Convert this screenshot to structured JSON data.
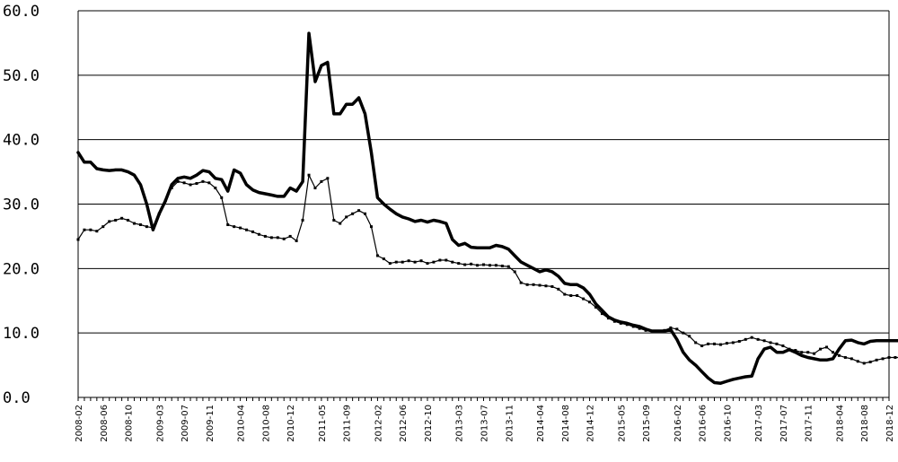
{
  "chart_data": {
    "type": "line",
    "title": "",
    "xlabel": "",
    "ylabel": "",
    "ylim": [
      0,
      60
    ],
    "y_ticks": [
      "0.0",
      "10.0",
      "20.0",
      "30.0",
      "40.0",
      "50.0",
      "60.0"
    ],
    "x_range": [
      "2008-02",
      "2018-12"
    ],
    "x_tick_labels": [
      "2008-02",
      "2008-06",
      "2008-10",
      "2009-03",
      "2009-07",
      "2009-11",
      "2010-04",
      "2010-08",
      "2010-12",
      "2011-05",
      "2011-09",
      "2012-02",
      "2012-06",
      "2012-10",
      "2013-03",
      "2013-07",
      "2013-11",
      "2014-04",
      "2014-08",
      "2014-12",
      "2015-05",
      "2015-09",
      "2016-02",
      "2016-06",
      "2016-10",
      "2017-03",
      "2017-07",
      "2017-11",
      "2018-04",
      "2018-08",
      "2018-12"
    ],
    "grid": "horizontal",
    "colors": {
      "line": "#000000",
      "grid": "#000000"
    },
    "series": [
      {
        "style": "thick",
        "points": [
          [
            "2008-02",
            38.0
          ],
          [
            "2008-03",
            36.5
          ],
          [
            "2008-04",
            36.5
          ],
          [
            "2008-05",
            35.5
          ],
          [
            "2008-06",
            35.3
          ],
          [
            "2008-07",
            35.2
          ],
          [
            "2008-08",
            35.3
          ],
          [
            "2008-09",
            35.3
          ],
          [
            "2008-10",
            35.0
          ],
          [
            "2008-11",
            34.5
          ],
          [
            "2008-12",
            33.0
          ],
          [
            "2009-01",
            30.0
          ],
          [
            "2009-02",
            26.0
          ],
          [
            "2009-03",
            28.5
          ],
          [
            "2009-04",
            30.5
          ],
          [
            "2009-05",
            33.0
          ],
          [
            "2009-06",
            34.0
          ],
          [
            "2009-07",
            34.2
          ],
          [
            "2009-08",
            34.0
          ],
          [
            "2009-09",
            34.5
          ],
          [
            "2009-10",
            35.2
          ],
          [
            "2009-11",
            35.0
          ],
          [
            "2009-12",
            34.0
          ],
          [
            "2010-01",
            33.8
          ],
          [
            "2010-02",
            32.0
          ],
          [
            "2010-03",
            35.3
          ],
          [
            "2010-04",
            34.8
          ],
          [
            "2010-05",
            33.0
          ],
          [
            "2010-06",
            32.2
          ],
          [
            "2010-07",
            31.8
          ],
          [
            "2010-08",
            31.6
          ],
          [
            "2010-09",
            31.4
          ],
          [
            "2010-10",
            31.2
          ],
          [
            "2010-11",
            31.2
          ],
          [
            "2010-12",
            32.5
          ],
          [
            "2011-01",
            32.0
          ],
          [
            "2011-02",
            33.5
          ],
          [
            "2011-03",
            56.5
          ],
          [
            "2011-04",
            49.0
          ],
          [
            "2011-05",
            51.5
          ],
          [
            "2011-06",
            52.0
          ],
          [
            "2011-07",
            44.0
          ],
          [
            "2011-08",
            44.0
          ],
          [
            "2011-09",
            45.5
          ],
          [
            "2011-10",
            45.5
          ],
          [
            "2011-11",
            46.5
          ],
          [
            "2011-12",
            44.0
          ],
          [
            "2012-01",
            38.0
          ],
          [
            "2012-02",
            31.0
          ],
          [
            "2012-03",
            30.0
          ],
          [
            "2012-04",
            29.2
          ],
          [
            "2012-05",
            28.5
          ],
          [
            "2012-06",
            28.0
          ],
          [
            "2012-07",
            27.7
          ],
          [
            "2012-08",
            27.3
          ],
          [
            "2012-09",
            27.5
          ],
          [
            "2012-10",
            27.2
          ],
          [
            "2012-11",
            27.5
          ],
          [
            "2012-12",
            27.3
          ],
          [
            "2013-01",
            27.0
          ],
          [
            "2013-02",
            24.5
          ],
          [
            "2013-03",
            23.6
          ],
          [
            "2013-04",
            23.9
          ],
          [
            "2013-05",
            23.3
          ],
          [
            "2013-06",
            23.2
          ],
          [
            "2013-07",
            23.2
          ],
          [
            "2013-08",
            23.2
          ],
          [
            "2013-09",
            23.6
          ],
          [
            "2013-10",
            23.4
          ],
          [
            "2013-11",
            23.0
          ],
          [
            "2013-12",
            22.0
          ],
          [
            "2014-01",
            21.0
          ],
          [
            "2014-02",
            20.5
          ],
          [
            "2014-03",
            20.0
          ],
          [
            "2014-04",
            19.5
          ],
          [
            "2014-05",
            19.8
          ],
          [
            "2014-06",
            19.5
          ],
          [
            "2014-07",
            18.8
          ],
          [
            "2014-08",
            17.7
          ],
          [
            "2014-09",
            17.5
          ],
          [
            "2014-10",
            17.5
          ],
          [
            "2014-11",
            17.0
          ],
          [
            "2014-12",
            16.0
          ],
          [
            "2015-01",
            14.5
          ],
          [
            "2015-02",
            13.5
          ],
          [
            "2015-03",
            12.5
          ],
          [
            "2015-04",
            12.0
          ],
          [
            "2015-05",
            11.7
          ],
          [
            "2015-06",
            11.5
          ],
          [
            "2015-07",
            11.2
          ],
          [
            "2015-08",
            11.0
          ],
          [
            "2015-09",
            10.6
          ],
          [
            "2015-10",
            10.3
          ],
          [
            "2015-11",
            10.3
          ],
          [
            "2015-12",
            10.3
          ],
          [
            "2016-01",
            10.5
          ],
          [
            "2016-02",
            9.0
          ],
          [
            "2016-03",
            7.0
          ],
          [
            "2016-04",
            5.8
          ],
          [
            "2016-05",
            5.0
          ],
          [
            "2016-06",
            4.0
          ],
          [
            "2016-07",
            3.0
          ],
          [
            "2016-08",
            2.3
          ],
          [
            "2016-09",
            2.2
          ],
          [
            "2016-10",
            2.5
          ],
          [
            "2016-11",
            2.8
          ],
          [
            "2016-12",
            3.0
          ],
          [
            "2017-01",
            3.2
          ],
          [
            "2017-02",
            3.3
          ],
          [
            "2017-03",
            6.0
          ],
          [
            "2017-04",
            7.5
          ],
          [
            "2017-05",
            7.8
          ],
          [
            "2017-06",
            7.0
          ],
          [
            "2017-07",
            7.0
          ],
          [
            "2017-08",
            7.4
          ],
          [
            "2017-09",
            7.0
          ],
          [
            "2017-10",
            6.5
          ],
          [
            "2017-11",
            6.2
          ],
          [
            "2017-12",
            6.0
          ],
          [
            "2018-01",
            5.8
          ],
          [
            "2018-02",
            5.8
          ],
          [
            "2018-03",
            6.0
          ],
          [
            "2018-04",
            7.5
          ],
          [
            "2018-05",
            8.8
          ],
          [
            "2018-06",
            8.9
          ],
          [
            "2018-07",
            8.5
          ],
          [
            "2018-08",
            8.3
          ],
          [
            "2018-09",
            8.7
          ],
          [
            "2018-10",
            8.8
          ],
          [
            "2018-11",
            8.8
          ],
          [
            "2018-12",
            8.8
          ],
          [
            "2019-01",
            8.8
          ],
          [
            "2019-02",
            8.8
          ]
        ]
      },
      {
        "style": "thin-marked",
        "points": [
          [
            "2008-02",
            24.5
          ],
          [
            "2008-03",
            26.0
          ],
          [
            "2008-04",
            26.0
          ],
          [
            "2008-05",
            25.8
          ],
          [
            "2008-06",
            26.5
          ],
          [
            "2008-07",
            27.3
          ],
          [
            "2008-08",
            27.5
          ],
          [
            "2008-09",
            27.8
          ],
          [
            "2008-10",
            27.5
          ],
          [
            "2008-11",
            27.0
          ],
          [
            "2008-12",
            26.8
          ],
          [
            "2009-01",
            26.5
          ],
          [
            "2009-02",
            26.3
          ],
          [
            "2009-03",
            28.5
          ],
          [
            "2009-04",
            30.5
          ],
          [
            "2009-05",
            32.5
          ],
          [
            "2009-06",
            33.5
          ],
          [
            "2009-07",
            33.3
          ],
          [
            "2009-08",
            33.0
          ],
          [
            "2009-09",
            33.2
          ],
          [
            "2009-10",
            33.5
          ],
          [
            "2009-11",
            33.3
          ],
          [
            "2009-12",
            32.5
          ],
          [
            "2010-01",
            31.0
          ],
          [
            "2010-02",
            26.8
          ],
          [
            "2010-03",
            26.5
          ],
          [
            "2010-04",
            26.3
          ],
          [
            "2010-05",
            26.0
          ],
          [
            "2010-06",
            25.7
          ],
          [
            "2010-07",
            25.3
          ],
          [
            "2010-08",
            25.0
          ],
          [
            "2010-09",
            24.8
          ],
          [
            "2010-10",
            24.8
          ],
          [
            "2010-11",
            24.6
          ],
          [
            "2010-12",
            25.0
          ],
          [
            "2011-01",
            24.3
          ],
          [
            "2011-02",
            27.5
          ],
          [
            "2011-03",
            34.5
          ],
          [
            "2011-04",
            32.5
          ],
          [
            "2011-05",
            33.5
          ],
          [
            "2011-06",
            34.0
          ],
          [
            "2011-07",
            27.5
          ],
          [
            "2011-08",
            27.0
          ],
          [
            "2011-09",
            28.0
          ],
          [
            "2011-10",
            28.5
          ],
          [
            "2011-11",
            29.0
          ],
          [
            "2011-12",
            28.5
          ],
          [
            "2012-01",
            26.5
          ],
          [
            "2012-02",
            22.0
          ],
          [
            "2012-03",
            21.5
          ],
          [
            "2012-04",
            20.8
          ],
          [
            "2012-05",
            21.0
          ],
          [
            "2012-06",
            21.0
          ],
          [
            "2012-07",
            21.2
          ],
          [
            "2012-08",
            21.0
          ],
          [
            "2012-09",
            21.2
          ],
          [
            "2012-10",
            20.8
          ],
          [
            "2012-11",
            21.0
          ],
          [
            "2012-12",
            21.3
          ],
          [
            "2013-01",
            21.3
          ],
          [
            "2013-02",
            21.0
          ],
          [
            "2013-03",
            20.8
          ],
          [
            "2013-04",
            20.6
          ],
          [
            "2013-05",
            20.7
          ],
          [
            "2013-06",
            20.5
          ],
          [
            "2013-07",
            20.6
          ],
          [
            "2013-08",
            20.5
          ],
          [
            "2013-09",
            20.5
          ],
          [
            "2013-10",
            20.4
          ],
          [
            "2013-11",
            20.3
          ],
          [
            "2013-12",
            19.5
          ],
          [
            "2014-01",
            17.8
          ],
          [
            "2014-02",
            17.5
          ],
          [
            "2014-03",
            17.5
          ],
          [
            "2014-04",
            17.4
          ],
          [
            "2014-05",
            17.3
          ],
          [
            "2014-06",
            17.2
          ],
          [
            "2014-07",
            16.8
          ],
          [
            "2014-08",
            16.0
          ],
          [
            "2014-09",
            15.8
          ],
          [
            "2014-10",
            15.8
          ],
          [
            "2014-11",
            15.3
          ],
          [
            "2014-12",
            14.8
          ],
          [
            "2015-01",
            14.0
          ],
          [
            "2015-02",
            13.0
          ],
          [
            "2015-03",
            12.3
          ],
          [
            "2015-04",
            11.8
          ],
          [
            "2015-05",
            11.5
          ],
          [
            "2015-06",
            11.3
          ],
          [
            "2015-07",
            11.0
          ],
          [
            "2015-08",
            10.7
          ],
          [
            "2015-09",
            10.4
          ],
          [
            "2015-10",
            10.3
          ],
          [
            "2015-11",
            10.3
          ],
          [
            "2015-12",
            10.4
          ],
          [
            "2016-01",
            10.8
          ],
          [
            "2016-02",
            10.6
          ],
          [
            "2016-03",
            10.0
          ],
          [
            "2016-04",
            9.5
          ],
          [
            "2016-05",
            8.5
          ],
          [
            "2016-06",
            8.0
          ],
          [
            "2016-07",
            8.3
          ],
          [
            "2016-08",
            8.3
          ],
          [
            "2016-09",
            8.2
          ],
          [
            "2016-10",
            8.4
          ],
          [
            "2016-11",
            8.5
          ],
          [
            "2016-12",
            8.7
          ],
          [
            "2017-01",
            9.0
          ],
          [
            "2017-02",
            9.3
          ],
          [
            "2017-03",
            9.0
          ],
          [
            "2017-04",
            8.8
          ],
          [
            "2017-05",
            8.5
          ],
          [
            "2017-06",
            8.3
          ],
          [
            "2017-07",
            8.0
          ],
          [
            "2017-08",
            7.5
          ],
          [
            "2017-09",
            7.3
          ],
          [
            "2017-10",
            7.0
          ],
          [
            "2017-11",
            7.0
          ],
          [
            "2017-12",
            6.8
          ],
          [
            "2018-01",
            7.5
          ],
          [
            "2018-02",
            7.8
          ],
          [
            "2018-03",
            7.0
          ],
          [
            "2018-04",
            6.5
          ],
          [
            "2018-05",
            6.2
          ],
          [
            "2018-06",
            6.0
          ],
          [
            "2018-07",
            5.6
          ],
          [
            "2018-08",
            5.3
          ],
          [
            "2018-09",
            5.5
          ],
          [
            "2018-10",
            5.8
          ],
          [
            "2018-11",
            6.0
          ],
          [
            "2018-12",
            6.2
          ],
          [
            "2019-01",
            6.2
          ],
          [
            "2019-02",
            6.2
          ]
        ]
      }
    ]
  }
}
